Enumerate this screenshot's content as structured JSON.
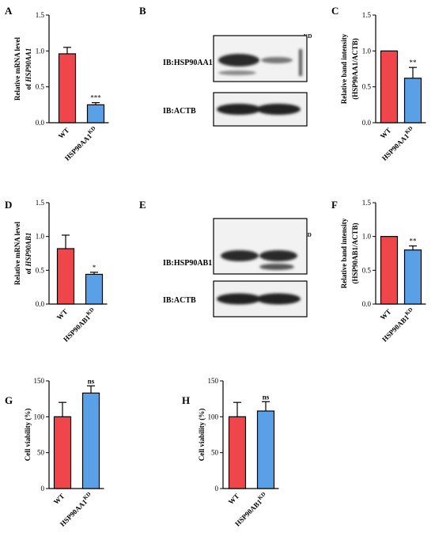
{
  "colors": {
    "red": "#f0464b",
    "blue": "#5aa0e6",
    "black": "#000000"
  },
  "panels": [
    {
      "letter": "A",
      "ylabel_lines": [
        "Relative mRNA level",
        "of HSP90AA1"
      ],
      "italic_line2": true
    },
    {
      "letter": "B"
    },
    {
      "letter": "C",
      "ylabel_lines": [
        "Relative band intensity",
        "(HSP90AA1/ACTB)"
      ],
      "italic_line2": false
    },
    {
      "letter": "D",
      "ylabel_lines": [
        "Relative mRNA level",
        "of HSP90AB1"
      ],
      "italic_line2": true
    },
    {
      "letter": "E"
    },
    {
      "letter": "F",
      "ylabel_lines": [
        "Relative band intensity",
        "(HSP90AB1/ACTB)"
      ],
      "italic_line2": false
    },
    {
      "letter": "G",
      "ylabel_lines": [
        "Cell viability (%)"
      ]
    },
    {
      "letter": "H",
      "ylabel_lines": [
        "Cell viability (%)"
      ]
    }
  ],
  "blots": [
    {
      "panel": "B",
      "lane1": "WT",
      "lane2": "HSP90AA1",
      "lane2_sup": "KD",
      "row1": "IB:HSP90AA1",
      "row2": "IB:ACTB"
    },
    {
      "panel": "E",
      "lane1": "WT",
      "lane2": "HSP90AB1",
      "lane2_sup": "KD",
      "row1": "IB:HSP90AB1",
      "row2": "IB:ACTB"
    }
  ],
  "chart_data": [
    {
      "panel": "A",
      "type": "bar",
      "categories": [
        "WT",
        "HSP90AA1"
      ],
      "category_sup": [
        "",
        "KD"
      ],
      "values": [
        0.96,
        0.25
      ],
      "errors": [
        0.09,
        0.03
      ],
      "significance": [
        "",
        "***"
      ],
      "ylim": [
        0,
        1.5
      ],
      "yticks": [
        "0.0",
        "0.5",
        "1.0",
        "1.5"
      ],
      "ylabel": "Relative mRNA level of HSP90AA1",
      "xlabel": "",
      "title": ""
    },
    {
      "panel": "C",
      "type": "bar",
      "categories": [
        "WT",
        "HSP90AA1"
      ],
      "category_sup": [
        "",
        "KD"
      ],
      "values": [
        1.0,
        0.62
      ],
      "errors": [
        0,
        0.15
      ],
      "significance": [
        "",
        "**"
      ],
      "ylim": [
        0,
        1.5
      ],
      "yticks": [
        "0.0",
        "0.5",
        "1.0",
        "1.5"
      ],
      "ylabel": "Relative band intensity (HSP90AA1/ACTB)",
      "xlabel": "",
      "title": ""
    },
    {
      "panel": "D",
      "type": "bar",
      "categories": [
        "WT",
        "HSP90AB1"
      ],
      "category_sup": [
        "",
        "KD"
      ],
      "values": [
        0.82,
        0.44
      ],
      "errors": [
        0.2,
        0.03
      ],
      "significance": [
        "",
        "*"
      ],
      "ylim": [
        0,
        1.5
      ],
      "yticks": [
        "0.0",
        "0.5",
        "1.0",
        "1.5"
      ],
      "ylabel": "Relative mRNA level of HSP90AB1",
      "xlabel": "",
      "title": ""
    },
    {
      "panel": "F",
      "type": "bar",
      "categories": [
        "WT",
        "HSP90AB1"
      ],
      "category_sup": [
        "",
        "KD"
      ],
      "values": [
        1.0,
        0.8
      ],
      "errors": [
        0,
        0.06
      ],
      "significance": [
        "",
        "**"
      ],
      "ylim": [
        0,
        1.5
      ],
      "yticks": [
        "0.0",
        "0.5",
        "1.0",
        "1.5"
      ],
      "ylabel": "Relative band intensity (HSP90AB1/ACTB)",
      "xlabel": "",
      "title": ""
    },
    {
      "panel": "G",
      "type": "bar",
      "categories": [
        "WT",
        "HSP90AA1"
      ],
      "category_sup": [
        "",
        "KD"
      ],
      "values": [
        100,
        133
      ],
      "errors": [
        20,
        10
      ],
      "significance": [
        "",
        "ns"
      ],
      "ylim": [
        0,
        150
      ],
      "yticks": [
        "0",
        "50",
        "100",
        "150"
      ],
      "ylabel": "Cell viability (%)",
      "xlabel": "",
      "title": ""
    },
    {
      "panel": "H",
      "type": "bar",
      "categories": [
        "WT",
        "HSP90AB1"
      ],
      "category_sup": [
        "",
        "KD"
      ],
      "values": [
        100,
        108
      ],
      "errors": [
        20,
        13
      ],
      "significance": [
        "",
        "ns"
      ],
      "ylim": [
        0,
        150
      ],
      "yticks": [
        "0",
        "50",
        "100",
        "150"
      ],
      "ylabel": "Cell viability (%)",
      "xlabel": "",
      "title": ""
    }
  ]
}
